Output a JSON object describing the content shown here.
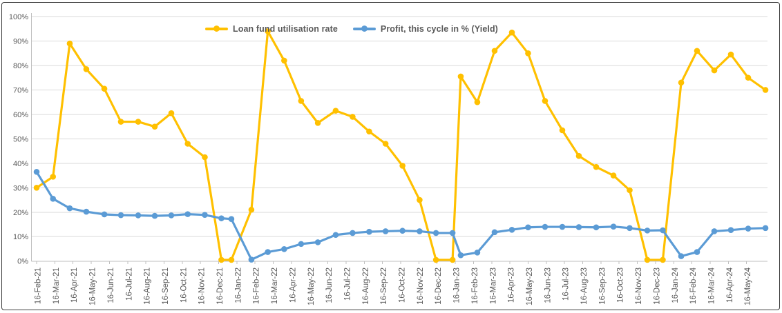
{
  "chart_data": {
    "type": "line",
    "title": "",
    "legend_position": "top-center",
    "grid": "horizontal",
    "x_axis": {
      "x_unit": "months_from_first_tick",
      "tick_labels": [
        "16-Feb-21",
        "16-Mar-21",
        "16-Apr-21",
        "16-May-21",
        "16-Jun-21",
        "16-Jul-21",
        "16-Aug-21",
        "16-Sep-21",
        "16-Oct-21",
        "16-Nov-21",
        "16-Dec-21",
        "16-Jan-22",
        "16-Feb-22",
        "16-Mar-22",
        "16-Apr-22",
        "16-May-22",
        "16-Jun-22",
        "16-Jul-22",
        "16-Aug-22",
        "16-Sep-22",
        "16-Oct-22",
        "16-Nov-22",
        "16-Dec-22",
        "16-Jan-23",
        "16-Feb-23",
        "16-Mar-23",
        "16-Apr-23",
        "16-May-23",
        "16-Jun-23",
        "16-Jul-23",
        "16-Aug-23",
        "16-Sep-23",
        "16-Oct-23",
        "16-Nov-23",
        "16-Dec-23",
        "16-Jan-24",
        "16-Feb-24",
        "16-Mar-24",
        "16-Apr-24",
        "16-May-24"
      ]
    },
    "y_axis": {
      "min": 0,
      "max": 100,
      "tick_labels": [
        "0%",
        "10%",
        "20%",
        "30%",
        "40%",
        "50%",
        "60%",
        "70%",
        "80%",
        "90%",
        "100%"
      ]
    },
    "x_months": [
      0,
      0.9,
      1.82,
      2.73,
      3.72,
      4.63,
      5.58,
      6.49,
      7.4,
      8.3,
      9.24,
      10.15,
      10.7,
      11.8,
      12.7,
      13.6,
      14.53,
      15.45,
      16.43,
      17.36,
      18.27,
      19.17,
      20.1,
      21.04,
      21.94,
      22.85,
      23.3,
      24.21,
      25.16,
      26.11,
      27.0,
      27.93,
      28.88,
      29.79,
      30.74,
      31.69,
      32.58,
      33.55,
      34.4,
      35.41,
      36.28,
      37.23,
      38.14,
      39.09,
      40.04
    ],
    "series": [
      {
        "name": "Loan fund utilisation rate",
        "color": "#FFC000",
        "marker": "circle",
        "values_pct": [
          30,
          34.5,
          89,
          78.5,
          70.5,
          57,
          57,
          55,
          60.5,
          48,
          42.5,
          0.5,
          0.5,
          21,
          94,
          82,
          65.5,
          56.5,
          61.5,
          59,
          53,
          48,
          39,
          25,
          0.5,
          0.5,
          75.5,
          65,
          86,
          93.5,
          85,
          65.5,
          53.5,
          43,
          38.5,
          35,
          29,
          0.5,
          0.5,
          73,
          86,
          78,
          84.5,
          75,
          70
        ]
      },
      {
        "name": "Profit, this cycle in % (Yield)",
        "color": "#5B9BD5",
        "marker": "circle",
        "values_pct": [
          36.5,
          25.5,
          21.6,
          20.2,
          19.1,
          18.8,
          18.7,
          18.5,
          18.7,
          19.2,
          18.9,
          17.5,
          17.2,
          0.6,
          3.7,
          4.9,
          7,
          7.7,
          10.7,
          11.5,
          12,
          12.2,
          12.4,
          12.2,
          11.5,
          11.5,
          2.4,
          3.5,
          11.8,
          12.8,
          13.8,
          14,
          14,
          13.9,
          13.8,
          14.1,
          13.5,
          12.5,
          12.6,
          2,
          3.7,
          12.2,
          12.7,
          13.3,
          13.5
        ]
      }
    ],
    "style": {
      "axis_text_color": "#595959",
      "legend_text_color": "#595959",
      "gridline_color": "#D9D9D9",
      "axis_line_color": "#BFBFBF",
      "frame_border_color": "#3A3A3A",
      "background": "#FFFFFF"
    }
  }
}
